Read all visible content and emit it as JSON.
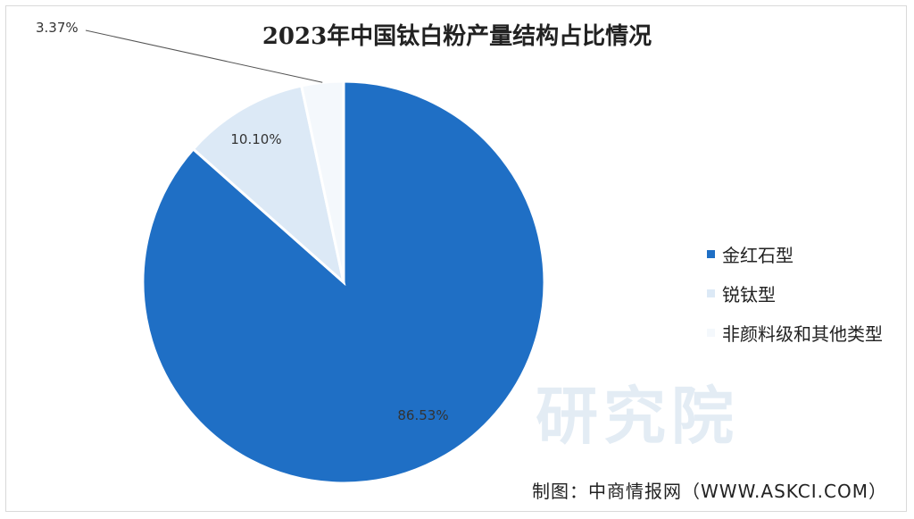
{
  "chart_data": {
    "type": "pie",
    "title": "2023年中国钛白粉产量结构占比情况",
    "slices": [
      {
        "label": "金红石型",
        "value": 86.53,
        "display": "86.53%",
        "color": "#1f6fc5"
      },
      {
        "label": "锐钛型",
        "value": 10.1,
        "display": "10.10%",
        "color": "#dce9f6"
      },
      {
        "label": "非颜料级和其他类型",
        "value": 3.37,
        "display": "3.37%",
        "color": "#f4f8fc"
      }
    ],
    "legend_position": "right"
  },
  "credit": "制图：中商情报网（WWW.ASKCI.COM）",
  "watermark": "研究院"
}
